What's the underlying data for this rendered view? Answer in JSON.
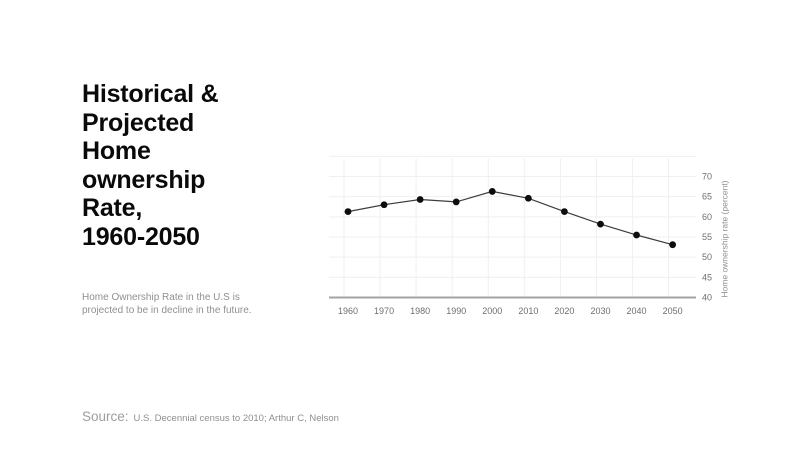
{
  "slide": {
    "title": "Historical &\nProjected\nHome\nownership\nRate,\n1960-2050",
    "subtitle": "Home Ownership Rate in the U.S is\nprojected to be in decline in the future.",
    "source_label": "Source:",
    "source_text": "U.S. Decennial census to 2010; Arthur C, Nelson"
  },
  "colors": {
    "title": "#0a0a0a",
    "subtitle": "#909090",
    "line": "#3d3d3d",
    "marker": "#0d0d0d",
    "grid": "#f1efef",
    "axis_line": "#a3a3a3",
    "tick_label": "#6e6e6e",
    "axis_title": "#8f8f8f"
  },
  "chart_data": {
    "type": "line",
    "title": "",
    "categories": [
      "1960",
      "1970",
      "1980",
      "1990",
      "2000",
      "2010",
      "2020",
      "2030",
      "2040",
      "2050"
    ],
    "series": [
      {
        "name": "Home ownership rate",
        "values": [
          61.3,
          63.0,
          64.3,
          63.7,
          66.3,
          64.6,
          61.3,
          58.2,
          55.5,
          53.1
        ]
      }
    ],
    "xlabel": "",
    "ylabel": "Home ownership rate (percent)",
    "ylabel_side": "right",
    "yticks": [
      40,
      45,
      50,
      55,
      60,
      65,
      70
    ],
    "ylim": [
      40,
      75
    ],
    "grid": true,
    "legend": false,
    "marker": "filled-circle"
  }
}
